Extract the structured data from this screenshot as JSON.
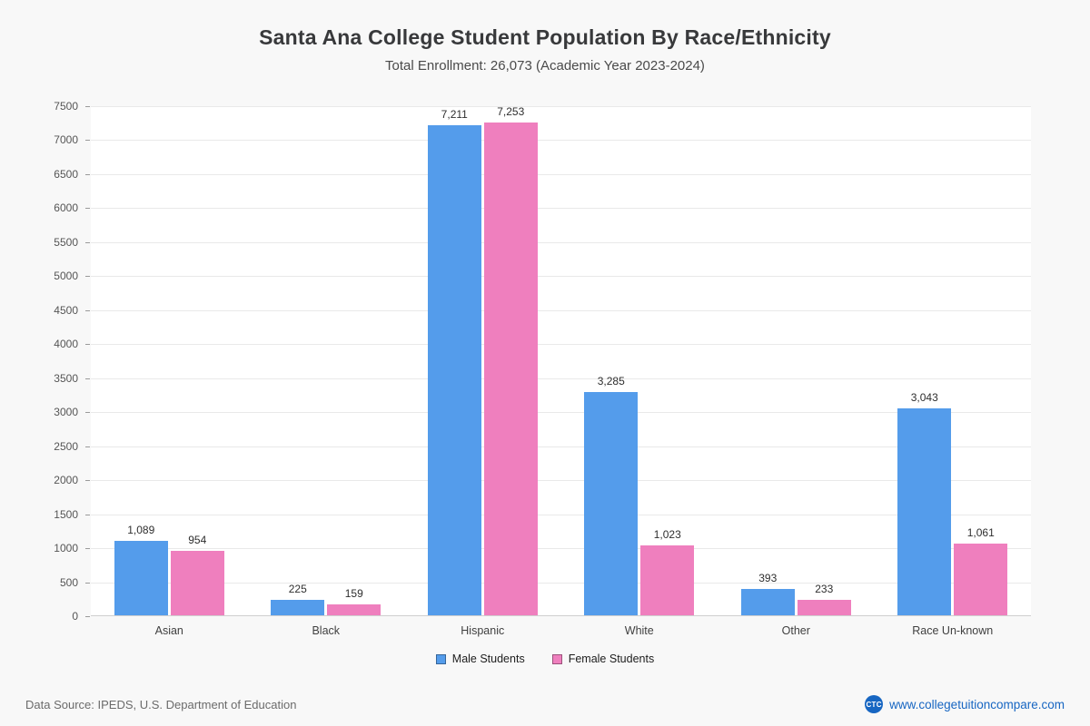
{
  "title": "Santa Ana College Student Population By Race/Ethnicity",
  "subtitle": "Total Enrollment: 26,073 (Academic Year 2023-2024)",
  "chart_data": {
    "type": "bar",
    "title": "Santa Ana College Student Population By Race/Ethnicity",
    "subtitle": "Total Enrollment: 26,073 (Academic Year 2023-2024)",
    "categories": [
      "Asian",
      "Black",
      "Hispanic",
      "White",
      "Other",
      "Race Un-known"
    ],
    "series": [
      {
        "name": "Male Students",
        "color": "#549ceb",
        "values": [
          1089,
          225,
          7211,
          3285,
          393,
          3043
        ]
      },
      {
        "name": "Female Students",
        "color": "#ef7fbe",
        "values": [
          954,
          159,
          7253,
          1023,
          233,
          1061
        ]
      }
    ],
    "xlabel": "",
    "ylabel": "",
    "ylim": [
      0,
      7500
    ],
    "ytick_step": 500,
    "grid": true,
    "legend_position": "bottom"
  },
  "footer": {
    "source": "Data Source: IPEDS, U.S. Department of Education",
    "logo_text": "CTC",
    "website": "www.collegetuitioncompare.com"
  }
}
